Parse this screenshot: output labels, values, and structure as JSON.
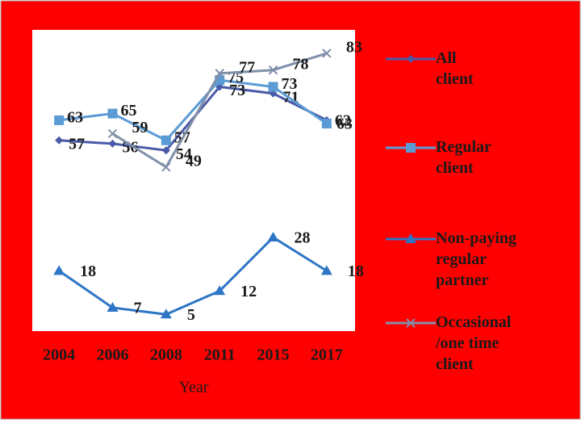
{
  "chart_data": {
    "type": "line",
    "x_label": "Year",
    "categories": [
      "2004",
      "2006",
      "2008",
      "2011",
      "2015",
      "2017"
    ],
    "series": [
      {
        "name": "All client",
        "color": "#4a5aa8",
        "marker": "diamond",
        "values": [
          57,
          56,
          54,
          73,
          71,
          63
        ]
      },
      {
        "name": "Regular client",
        "color": "#5b9bd5",
        "marker": "square",
        "values": [
          63,
          65,
          57,
          75,
          73,
          62
        ]
      },
      {
        "name": " Non-paying regular partner",
        "color": "#2e75c6",
        "marker": "triangle",
        "values": [
          18,
          7,
          5,
          12,
          28,
          18
        ]
      },
      {
        "name": "Occasional /one time client",
        "color": "#8090aa",
        "marker": "x",
        "values": [
          null,
          59,
          49,
          77,
          78,
          83
        ]
      }
    ],
    "ylim": [
      0,
      90
    ],
    "grid": false,
    "legend": "right"
  }
}
